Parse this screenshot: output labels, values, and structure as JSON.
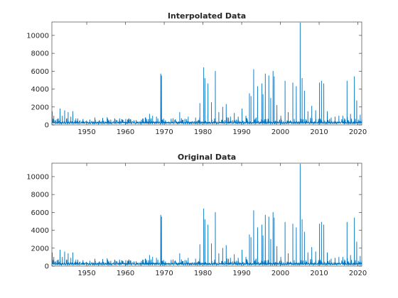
{
  "colors": {
    "series": "#0072BD",
    "axes": "#262626",
    "background": "#ffffff"
  },
  "chart_data": [
    {
      "type": "line",
      "title": "Interpolated Data",
      "xlabel": "",
      "ylabel": "",
      "xlim": [
        1941,
        2021
      ],
      "ylim": [
        0,
        11500
      ],
      "xticks": [
        1950,
        1960,
        1970,
        1980,
        1990,
        2000,
        2010,
        2020
      ],
      "yticks": [
        0,
        2000,
        4000,
        6000,
        8000,
        10000
      ],
      "grid": false,
      "legend": "none",
      "baseline": 150,
      "peaks": [
        [
          1941.1,
          1500
        ],
        [
          1941.5,
          1000
        ],
        [
          1942.3,
          600
        ],
        [
          1943.1,
          1800
        ],
        [
          1943.7,
          1000
        ],
        [
          1944.3,
          1600
        ],
        [
          1945.2,
          1400
        ],
        [
          1945.9,
          900
        ],
        [
          1946.4,
          1500
        ],
        [
          1947.2,
          700
        ],
        [
          1948.1,
          400
        ],
        [
          1952.1,
          800
        ],
        [
          1955.3,
          600
        ],
        [
          1957.2,
          700
        ],
        [
          1959.3,
          500
        ],
        [
          1965.1,
          800
        ],
        [
          1966.2,
          1200
        ],
        [
          1967.0,
          1000
        ],
        [
          1968.0,
          900
        ],
        [
          1969.1,
          5700
        ],
        [
          1969.3,
          5500
        ],
        [
          1972.3,
          500
        ],
        [
          1974.0,
          1400
        ],
        [
          1976.2,
          900
        ],
        [
          1978.1,
          800
        ],
        [
          1979.2,
          2400
        ],
        [
          1980.2,
          6400
        ],
        [
          1980.5,
          5200
        ],
        [
          1981.3,
          4600
        ],
        [
          1982.2,
          2500
        ],
        [
          1983.2,
          6000
        ],
        [
          1984.1,
          1400
        ],
        [
          1985.1,
          2000
        ],
        [
          1986.0,
          2300
        ],
        [
          1987.1,
          900
        ],
        [
          1988.1,
          1300
        ],
        [
          1989.1,
          900
        ],
        [
          1990.1,
          1800
        ],
        [
          1991.1,
          1000
        ],
        [
          1992.0,
          3500
        ],
        [
          1992.4,
          3200
        ],
        [
          1993.1,
          6200
        ],
        [
          1994.1,
          4300
        ],
        [
          1995.2,
          4600
        ],
        [
          1995.5,
          3400
        ],
        [
          1996.1,
          5700
        ],
        [
          1997.0,
          5500
        ],
        [
          1997.5,
          3000
        ],
        [
          1998.1,
          6000
        ],
        [
          1998.4,
          5400
        ],
        [
          1999.1,
          2200
        ],
        [
          2000.1,
          1000
        ],
        [
          2001.2,
          4900
        ],
        [
          2002.0,
          1400
        ],
        [
          2003.2,
          4700
        ],
        [
          2004.1,
          4300
        ],
        [
          2005.1,
          11400
        ],
        [
          2005.6,
          5200
        ],
        [
          2006.2,
          3800
        ],
        [
          2007.1,
          1500
        ],
        [
          2008.1,
          2100
        ],
        [
          2009.1,
          1600
        ],
        [
          2010.1,
          4700
        ],
        [
          2010.6,
          4900
        ],
        [
          2011.2,
          4600
        ],
        [
          2012.1,
          1500
        ],
        [
          2013.1,
          800
        ],
        [
          2014.1,
          900
        ],
        [
          2015.1,
          1000
        ],
        [
          2016.1,
          1000
        ],
        [
          2017.2,
          4900
        ],
        [
          2018.1,
          1200
        ],
        [
          2019.1,
          5400
        ],
        [
          2019.7,
          2700
        ],
        [
          2020.6,
          1100
        ]
      ]
    },
    {
      "type": "line",
      "title": "Original Data",
      "xlabel": "",
      "ylabel": "",
      "xlim": [
        1941,
        2021
      ],
      "ylim": [
        0,
        11500
      ],
      "xticks": [
        1950,
        1960,
        1970,
        1980,
        1990,
        2000,
        2010,
        2020
      ],
      "yticks": [
        0,
        2000,
        4000,
        6000,
        8000,
        10000
      ],
      "grid": false,
      "legend": "none",
      "baseline": 150,
      "peaks": [
        [
          1941.1,
          1500
        ],
        [
          1941.5,
          1000
        ],
        [
          1942.3,
          600
        ],
        [
          1943.1,
          1800
        ],
        [
          1943.7,
          1000
        ],
        [
          1944.3,
          1600
        ],
        [
          1945.2,
          1400
        ],
        [
          1945.9,
          900
        ],
        [
          1946.4,
          1500
        ],
        [
          1947.2,
          700
        ],
        [
          1948.1,
          400
        ],
        [
          1952.1,
          800
        ],
        [
          1955.3,
          600
        ],
        [
          1957.2,
          700
        ],
        [
          1959.3,
          500
        ],
        [
          1965.1,
          800
        ],
        [
          1966.2,
          1200
        ],
        [
          1967.0,
          1000
        ],
        [
          1968.0,
          900
        ],
        [
          1969.1,
          5700
        ],
        [
          1969.3,
          5500
        ],
        [
          1972.3,
          500
        ],
        [
          1974.0,
          1400
        ],
        [
          1976.2,
          900
        ],
        [
          1978.1,
          800
        ],
        [
          1979.2,
          2400
        ],
        [
          1980.2,
          6400
        ],
        [
          1980.5,
          5200
        ],
        [
          1981.3,
          4600
        ],
        [
          1982.2,
          2500
        ],
        [
          1983.2,
          6000
        ],
        [
          1984.1,
          1400
        ],
        [
          1985.1,
          2000
        ],
        [
          1986.0,
          2300
        ],
        [
          1987.1,
          900
        ],
        [
          1988.1,
          1300
        ],
        [
          1989.1,
          900
        ],
        [
          1990.1,
          1800
        ],
        [
          1991.1,
          1000
        ],
        [
          1992.0,
          3500
        ],
        [
          1992.4,
          3200
        ],
        [
          1993.1,
          6200
        ],
        [
          1994.1,
          4300
        ],
        [
          1995.2,
          4600
        ],
        [
          1995.5,
          3400
        ],
        [
          1996.1,
          5700
        ],
        [
          1997.0,
          5500
        ],
        [
          1997.5,
          3000
        ],
        [
          1998.1,
          6000
        ],
        [
          1998.4,
          5400
        ],
        [
          1999.1,
          2200
        ],
        [
          2000.1,
          1000
        ],
        [
          2001.2,
          4900
        ],
        [
          2002.0,
          1400
        ],
        [
          2003.2,
          4700
        ],
        [
          2004.1,
          4300
        ],
        [
          2005.1,
          11400
        ],
        [
          2005.6,
          5200
        ],
        [
          2006.2,
          3800
        ],
        [
          2007.1,
          1500
        ],
        [
          2008.1,
          2100
        ],
        [
          2009.1,
          1600
        ],
        [
          2010.1,
          4700
        ],
        [
          2010.6,
          4900
        ],
        [
          2011.2,
          4600
        ],
        [
          2012.1,
          1500
        ],
        [
          2013.1,
          800
        ],
        [
          2014.1,
          900
        ],
        [
          2015.1,
          1000
        ],
        [
          2016.1,
          1000
        ],
        [
          2017.2,
          4900
        ],
        [
          2018.1,
          1200
        ],
        [
          2019.1,
          5400
        ],
        [
          2019.7,
          2700
        ],
        [
          2020.6,
          1100
        ]
      ]
    }
  ]
}
